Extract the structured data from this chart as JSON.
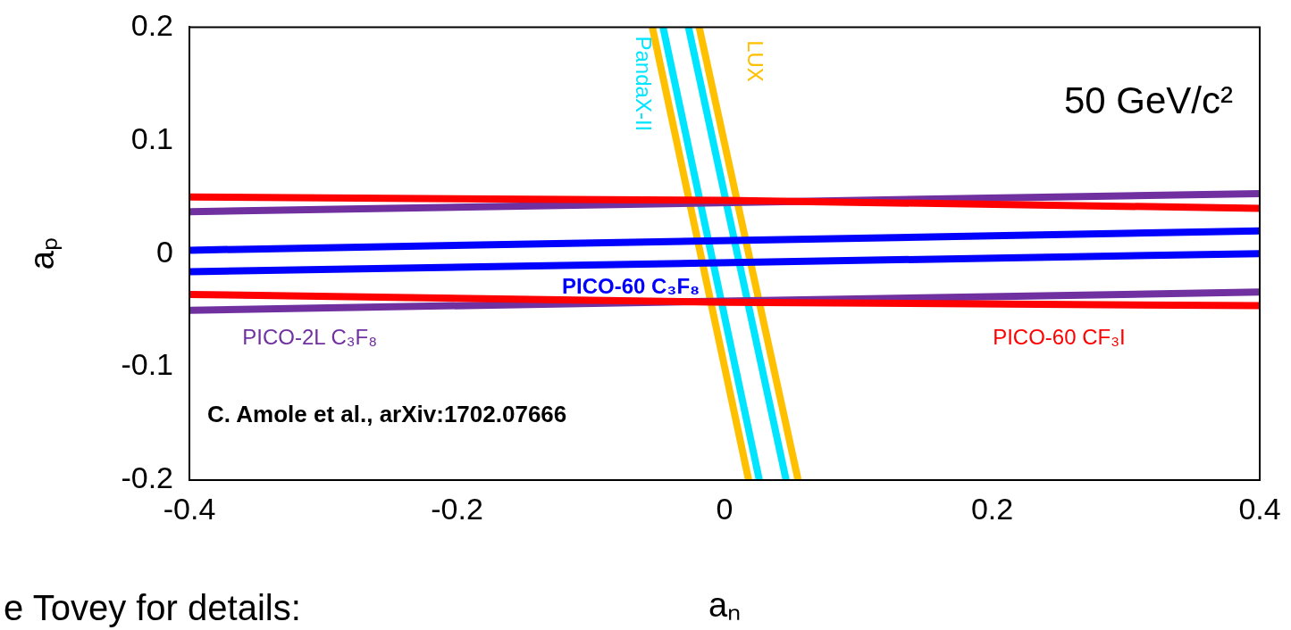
{
  "chart_data": {
    "type": "line",
    "xlabel": "aₙ",
    "ylabel": "aₚ",
    "xlim": [
      -0.4,
      0.4
    ],
    "ylim": [
      -0.2,
      0.2
    ],
    "xticks": [
      -0.4,
      -0.2,
      0,
      0.2,
      0.4
    ],
    "yticks": [
      -0.2,
      -0.1,
      0,
      0.1,
      0.2
    ],
    "grid": false,
    "legend": false,
    "marker": "none",
    "line_style": "solid",
    "series": [
      {
        "name": "PICO-60 CF₃I",
        "color": "#ff0000",
        "x": [
          -0.4,
          0,
          0.4
        ],
        "values": [
          0.05,
          0.047,
          0.04
        ]
      },
      {
        "color": "#ff0000",
        "x": [
          -0.4,
          0,
          0.4
        ],
        "values": [
          -0.036,
          -0.043,
          -0.046
        ]
      },
      {
        "name": "PICO-2L C₃F₈",
        "color": "#7030a0",
        "x": [
          -0.4,
          0.4
        ],
        "values": [
          0.037,
          0.053
        ]
      },
      {
        "color": "#7030a0",
        "x": [
          -0.4,
          0.4
        ],
        "values": [
          -0.05,
          -0.034
        ]
      },
      {
        "name": "PICO-60 C₃F₈",
        "color": "#0000ff",
        "x": [
          -0.4,
          0.4
        ],
        "values": [
          0.003,
          0.02
        ]
      },
      {
        "color": "#0000ff",
        "x": [
          -0.4,
          0.4
        ],
        "values": [
          -0.016,
          0.0
        ]
      },
      {
        "name": "LUX",
        "color": "#ffc000",
        "x": [
          -0.054,
          0.018
        ],
        "values": [
          0.2,
          -0.2
        ]
      },
      {
        "color": "#ffc000",
        "x": [
          -0.019,
          0.055
        ],
        "values": [
          0.2,
          -0.2
        ]
      },
      {
        "name": "PandaX-II",
        "color": "#00e5ff",
        "x": [
          -0.046,
          0.026
        ],
        "values": [
          0.2,
          -0.2
        ]
      },
      {
        "color": "#00e5ff",
        "x": [
          -0.027,
          0.046
        ],
        "values": [
          0.2,
          -0.2
        ]
      }
    ],
    "annotations": [
      "50 GeV/c²",
      "C. Amole et al., arXiv:1702.07666",
      "e Tovey for details:"
    ]
  }
}
